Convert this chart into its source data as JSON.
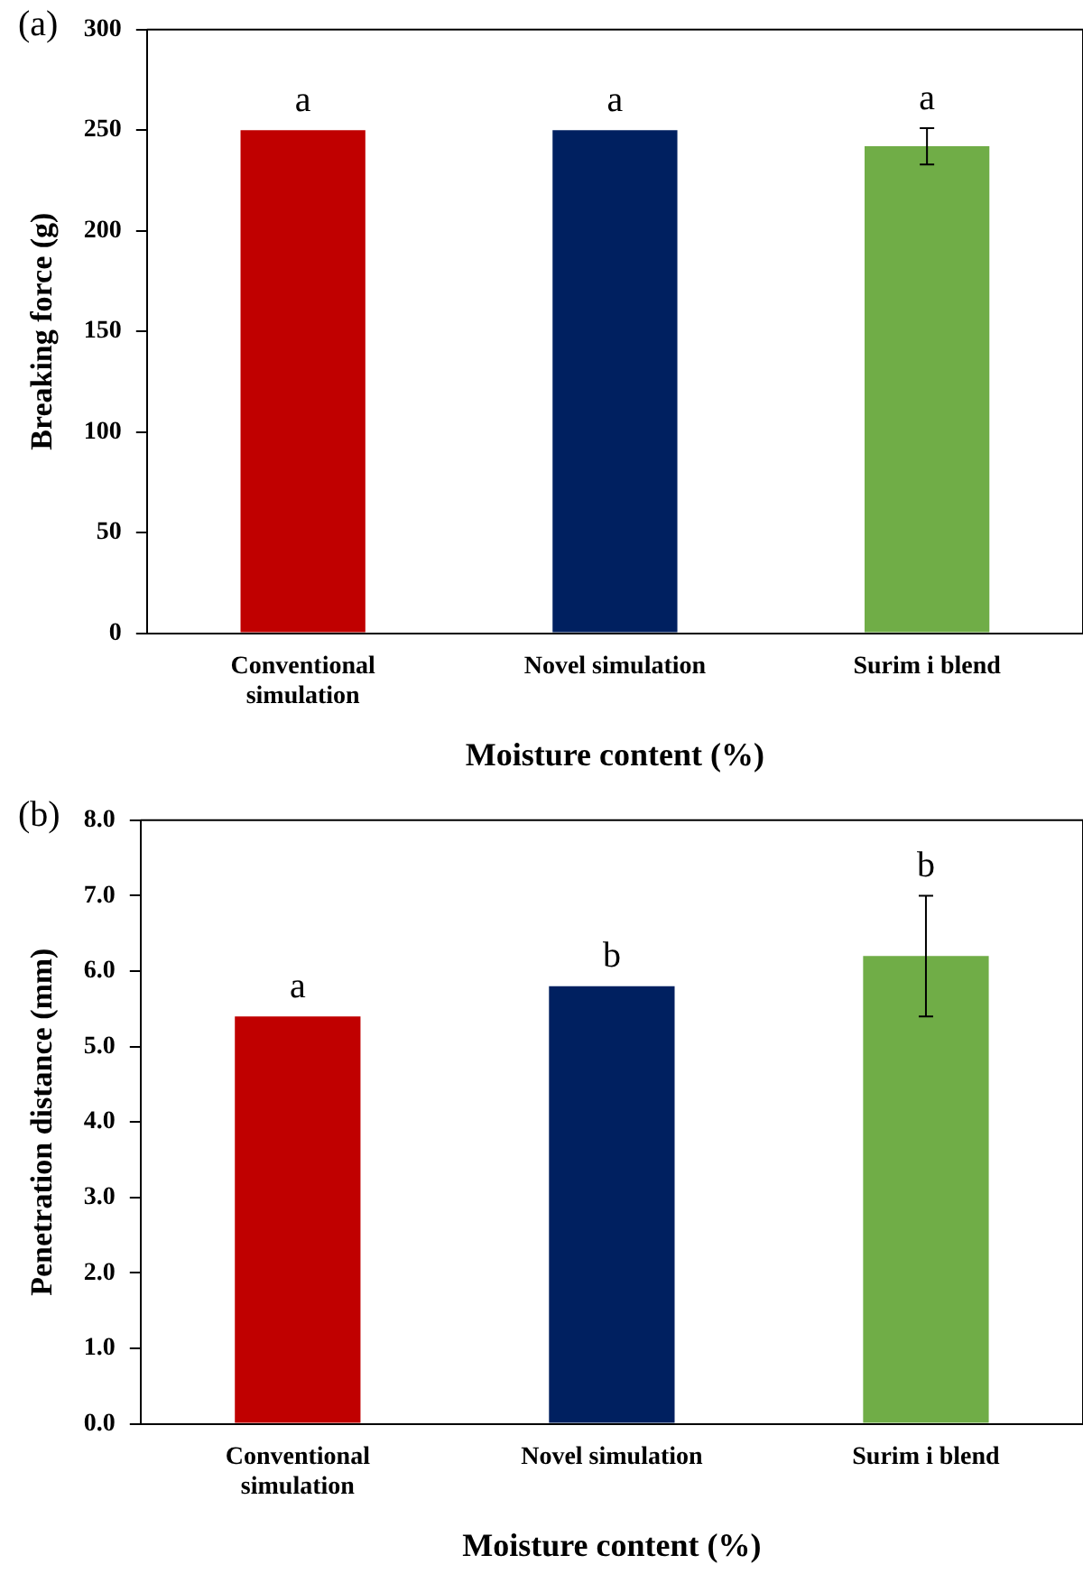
{
  "chart_data": [
    {
      "type": "bar",
      "title": "(a)",
      "xlabel": "Moisture content (%)",
      "ylabel": "Breaking force (g)",
      "categories": [
        "Conventional simulation",
        "Novel simulation",
        "Surim i blend"
      ],
      "values": [
        250,
        250,
        242
      ],
      "colors": [
        "#c00000",
        "#002060",
        "#70ad47"
      ],
      "errors": [
        null,
        null,
        9
      ],
      "ylim": [
        0,
        300
      ],
      "yticks": [
        0,
        50,
        100,
        150,
        200,
        250,
        300
      ],
      "grid": false,
      "legend": false,
      "annotations": [
        {
          "text": "a",
          "x": "Conventional simulation",
          "y": 250
        },
        {
          "text": "a",
          "x": "Novel simulation",
          "y": 250
        },
        {
          "text": "a",
          "x": "Surim i blend",
          "y": 251
        }
      ]
    },
    {
      "type": "bar",
      "title": "(b)",
      "xlabel": "Moisture content (%)",
      "ylabel": "Penetration distance (mm)",
      "categories": [
        "Conventional simulation",
        "Novel simulation",
        "Surim i blend"
      ],
      "values": [
        5.4,
        5.8,
        6.2
      ],
      "colors": [
        "#c00000",
        "#002060",
        "#70ad47"
      ],
      "errors": [
        null,
        null,
        0.8
      ],
      "ylim": [
        0,
        8
      ],
      "yticks": [
        {
          "value": 0,
          "label": "0.0"
        },
        {
          "value": 1,
          "label": "1.0"
        },
        {
          "value": 2,
          "label": "2.0"
        },
        {
          "value": 3,
          "label": "3.0"
        },
        {
          "value": 4,
          "label": "4.0"
        },
        {
          "value": 5,
          "label": "5.0"
        },
        {
          "value": 6,
          "label": "6.0"
        },
        {
          "value": 7,
          "label": "7.0"
        },
        {
          "value": 8,
          "label": "8.0"
        }
      ],
      "grid": false,
      "legend": false,
      "annotations": [
        {
          "text": "a",
          "x": "Conventional simulation",
          "y": 5.4
        },
        {
          "text": "b",
          "x": "Novel simulation",
          "y": 5.8
        },
        {
          "text": "b",
          "x": "Surim i blend",
          "y": 7.0
        }
      ]
    }
  ]
}
